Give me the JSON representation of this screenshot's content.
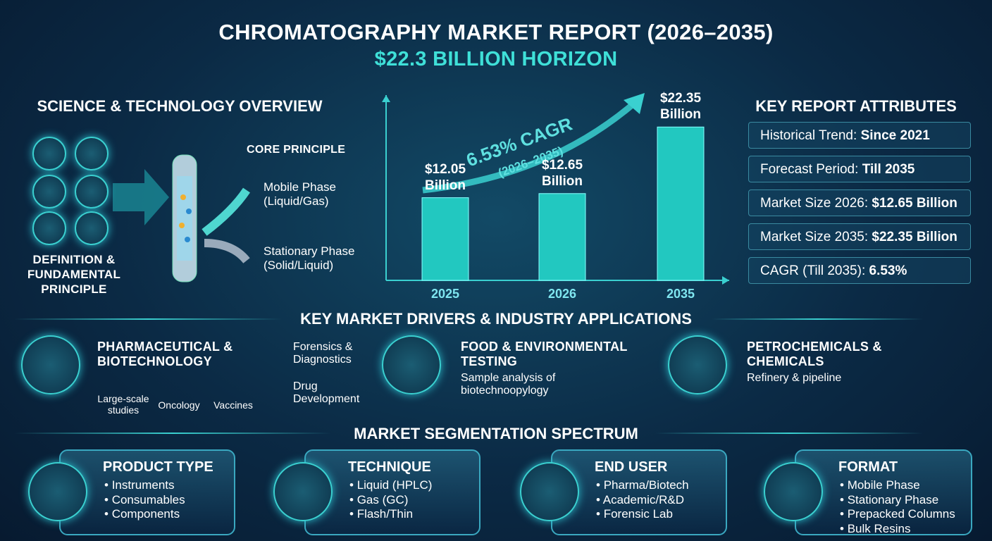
{
  "header": {
    "title": "CHROMATOGRAPHY MARKET REPORT (2026–2035)",
    "subtitle": "$22.3 BILLION HORIZON"
  },
  "overview": {
    "title": "SCIENCE & TECHNOLOGY OVERVIEW",
    "caption": "DEFINITION & FUNDAMENTAL PRINCIPLE",
    "core_title": "CORE PRINCIPLE",
    "phases": [
      "Mobile Phase (Liquid/Gas)",
      "Stationary Phase (Solid/Liquid)"
    ]
  },
  "chart_data": {
    "type": "bar",
    "categories": [
      "2025",
      "2026",
      "2035"
    ],
    "values": [
      12.05,
      12.65,
      22.35
    ],
    "value_labels": [
      "$12.05 Billion",
      "$12.65 Billion",
      "$22.35 Billion"
    ],
    "color": "#22c8c0",
    "ylim": [
      0,
      27
    ],
    "annotation": "6.53% CAGR",
    "annotation_sub": "(2026–2035)"
  },
  "attributes": {
    "title": "KEY REPORT ATTRIBUTES",
    "items": [
      {
        "label": "Historical Trend:",
        "value": "Since 2021"
      },
      {
        "label": "Forecast Period:",
        "value": "Till 2035"
      },
      {
        "label": "Market Size 2026:",
        "value": "$12.65 Billion"
      },
      {
        "label": "Market Size 2035:",
        "value": "$22.35 Billion"
      },
      {
        "label": "CAGR (Till 2035):",
        "value": "6.53%"
      }
    ]
  },
  "drivers": {
    "title": "KEY MARKET DRIVERS & INDUSTRY APPLICATIONS",
    "pharma": {
      "title": "PHARMACEUTICAL & BIOTECHNOLOGY",
      "subs": [
        "Large-scale studies",
        "Oncology",
        "Vaccines"
      ],
      "side": [
        "Forensics & Diagnostics",
        "Drug Development"
      ]
    },
    "food": {
      "title": "FOOD & ENVIRONMENTAL TESTING",
      "text": "Sample analysis of biotechnoopylogy"
    },
    "petro": {
      "title": "PETROCHEMICALS & CHEMICALS",
      "text": "Refinery & pipeline"
    }
  },
  "segmentation": {
    "title": "MARKET SEGMENTATION SPECTRUM",
    "groups": [
      {
        "title": "PRODUCT TYPE",
        "items": [
          "Instruments",
          "Consumables",
          "Components"
        ]
      },
      {
        "title": "TECHNIQUE",
        "items": [
          "Liquid (HPLC)",
          "Gas (GC)",
          "Flash/Thin"
        ]
      },
      {
        "title": "END USER",
        "items": [
          "Pharma/Biotech",
          "Academic/R&D",
          "Forensic Lab"
        ]
      },
      {
        "title": "FORMAT",
        "items": [
          "Mobile Phase",
          "Stationary Phase",
          "Prepacked Columns",
          "Bulk Resins"
        ]
      }
    ]
  }
}
